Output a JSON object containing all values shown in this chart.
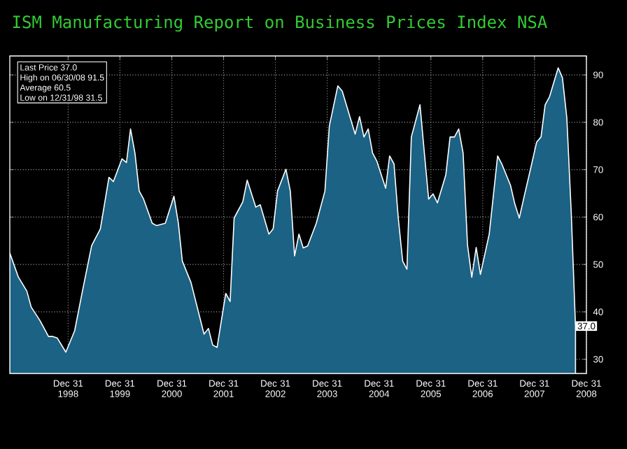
{
  "chart_data": {
    "type": "area",
    "title": "ISM Manufacturing Report on Business Prices Index NSA",
    "x": [
      "1997-11",
      "1998-01",
      "1998-03",
      "1998-04",
      "1998-06",
      "1998-08",
      "1998-09",
      "1998-10",
      "1998-12",
      "1999-02",
      "1999-04",
      "1999-06",
      "1999-08",
      "1999-10",
      "1999-11",
      "2000-01",
      "2000-02",
      "2000-03",
      "2000-04",
      "2000-05",
      "2000-06",
      "2000-08",
      "2000-09",
      "2000-11",
      "2001-01",
      "2001-02",
      "2001-03",
      "2001-05",
      "2001-08",
      "2001-09",
      "2001-10",
      "2001-11",
      "2002-01",
      "2002-02",
      "2002-03",
      "2002-05",
      "2002-06",
      "2002-08",
      "2002-09",
      "2002-11",
      "2002-12",
      "2003-01",
      "2003-03",
      "2003-04",
      "2003-05",
      "2003-06",
      "2003-07",
      "2003-08",
      "2003-10",
      "2003-12",
      "2004-01",
      "2004-03",
      "2004-04",
      "2004-07",
      "2004-08",
      "2004-09",
      "2004-10",
      "2004-11",
      "2004-12",
      "2005-02",
      "2005-03",
      "2005-04",
      "2005-05",
      "2005-06",
      "2005-07",
      "2005-08",
      "2005-10",
      "2005-11",
      "2005-12",
      "2006-01",
      "2006-02",
      "2006-04",
      "2006-05",
      "2006-06",
      "2006-07",
      "2006-08",
      "2006-09",
      "2006-10",
      "2006-11",
      "2006-12",
      "2007-02",
      "2007-04",
      "2007-05",
      "2007-07",
      "2007-08",
      "2007-09",
      "2007-10",
      "2007-11",
      "2008-01",
      "2008-02",
      "2008-03",
      "2008-04",
      "2008-06",
      "2008-07",
      "2008-08",
      "2008-09",
      "2008-10"
    ],
    "series": [
      {
        "color": "#1b6284",
        "values": [
          52.4,
          47.3,
          44.4,
          41,
          38.2,
          34.8,
          34.8,
          34.5,
          31.5,
          36,
          45,
          54,
          57.5,
          68.4,
          67.5,
          72.3,
          71.5,
          78.6,
          73.5,
          65.5,
          63.8,
          58.7,
          58.2,
          58.7,
          64.4,
          58.7,
          50.7,
          46.2,
          35.3,
          36.5,
          33,
          32.5,
          43.9,
          42.2,
          59.8,
          63.2,
          67.8,
          62.1,
          62.6,
          56.4,
          57.5,
          65.5,
          70.1,
          65.5,
          51.8,
          56.4,
          53.5,
          53.9,
          58.7,
          65.5,
          79.2,
          87.7,
          86.6,
          77.5,
          81.2,
          76.9,
          78.6,
          73.5,
          71.8,
          66.1,
          72.9,
          71.2,
          59.8,
          50.7,
          49,
          76.9,
          83.7,
          73.5,
          63.8,
          64.9,
          63,
          68.9,
          76.9,
          76.9,
          78.6,
          73.5,
          54.1,
          47.3,
          53.6,
          47.9,
          56.4,
          72.9,
          71.2,
          66.7,
          62.7,
          59.8,
          63.8,
          67.8,
          75.8,
          76.9,
          83.7,
          85.4,
          91.5,
          89.4,
          80.9,
          61,
          37
        ]
      }
    ],
    "xlim": [
      "1997-11",
      "2008-12-31"
    ],
    "xticks": [
      {
        "value": "1998-12-31",
        "label": "Dec 31 1998"
      },
      {
        "value": "1999-12-31",
        "label": "Dec 31 1999"
      },
      {
        "value": "2000-12-31",
        "label": "Dec 31 2000"
      },
      {
        "value": "2001-12-31",
        "label": "Dec 31 2001"
      },
      {
        "value": "2002-12-31",
        "label": "Dec 31 2002"
      },
      {
        "value": "2003-12-31",
        "label": "Dec 31 2003"
      },
      {
        "value": "2004-12-31",
        "label": "Dec 31 2004"
      },
      {
        "value": "2005-12-31",
        "label": "Dec 31 2005"
      },
      {
        "value": "2006-12-31",
        "label": "Dec 31 2006"
      },
      {
        "value": "2007-12-31",
        "label": "Dec 31 2007"
      },
      {
        "value": "2008-12-31",
        "label": "Dec 31 2008"
      }
    ],
    "ylim": [
      27,
      94
    ],
    "yticks": [
      30,
      40,
      50,
      60,
      70,
      80,
      90
    ],
    "grid": true,
    "annotations": [
      "Last Price 37.0",
      "High on 06/30/08 91.5",
      "Average 60.5",
      "Low on 12/31/98 31.5",
      {
        "text": "37.0",
        "x": "2008-10",
        "y": 37
      }
    ]
  }
}
